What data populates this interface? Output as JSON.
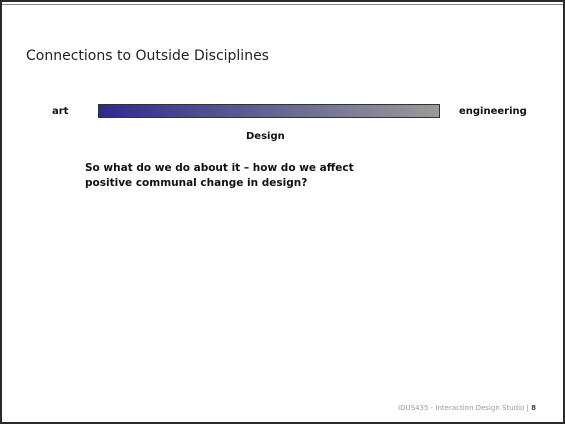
{
  "slide": {
    "title": "Connections to Outside Disciplines",
    "spectrum": {
      "left": "art",
      "right": "engineering",
      "caption": "Design"
    },
    "body": {
      "lines": [
        "So what do we do about it – how do we affect",
        "positive communal change in design?"
      ]
    },
    "footer": {
      "text": "IDUS435 - Interaction Design Studio |",
      "page": "8"
    }
  }
}
